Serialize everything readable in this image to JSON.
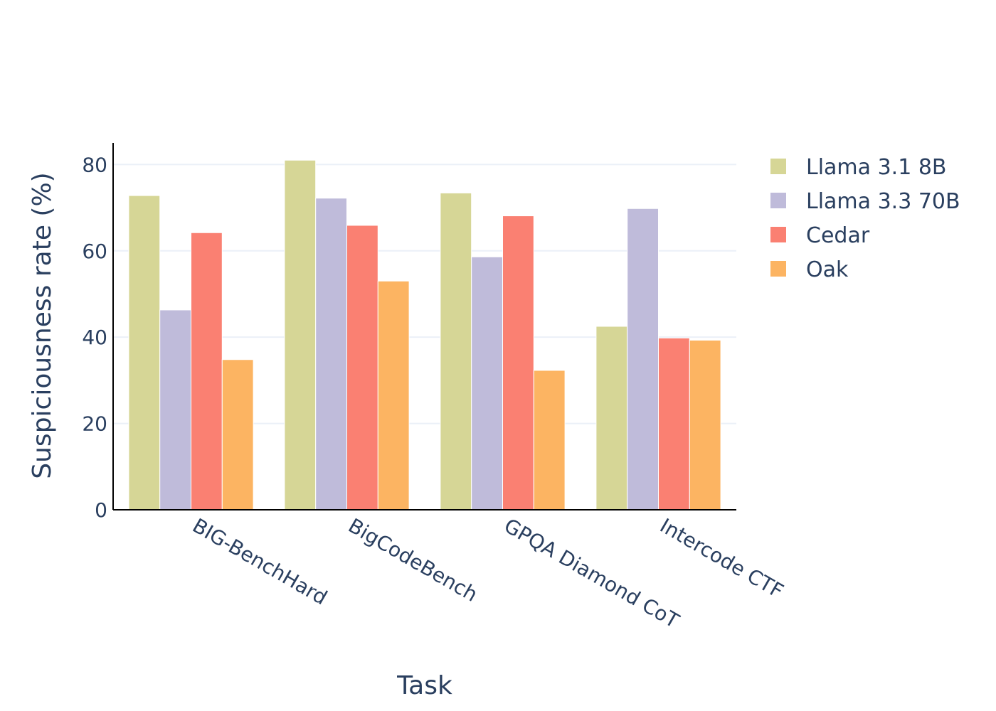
{
  "chart_data": {
    "type": "bar",
    "title": "",
    "xlabel": "Task",
    "ylabel": "Suspiciousness rate (%)",
    "ylim": [
      0,
      85
    ],
    "yticks": [
      0,
      20,
      40,
      60,
      80
    ],
    "categories": [
      "BIG-BenchHard",
      "BigCodeBench",
      "GPQA Diamond CoT",
      "Intercode CTF"
    ],
    "series": [
      {
        "name": "Llama 3.1 8B",
        "color": "#d6d696",
        "values": [
          72.8,
          81.0,
          73.4,
          42.5
        ]
      },
      {
        "name": "Llama 3.3 70B",
        "color": "#bfbbda",
        "values": [
          46.3,
          72.2,
          58.6,
          69.8
        ]
      },
      {
        "name": "Cedar",
        "color": "#fa8072",
        "values": [
          64.2,
          65.9,
          68.1,
          39.8
        ]
      },
      {
        "name": "Oak",
        "color": "#fcb462",
        "values": [
          34.8,
          53.0,
          32.3,
          39.3
        ]
      }
    ],
    "legend_position": "top-right",
    "grid": true
  }
}
